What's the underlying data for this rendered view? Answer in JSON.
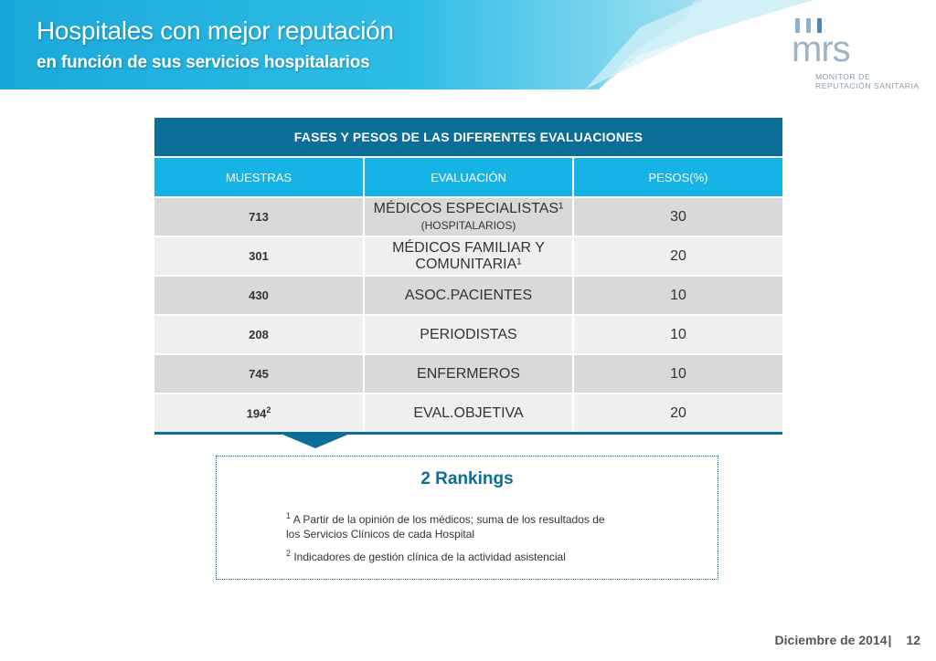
{
  "header": {
    "title": "Hospitales con mejor reputación",
    "subtitle": "en función de sus servicios hospitalarios"
  },
  "logo": {
    "word": "mrs",
    "tagline_1": "MONITOR DE",
    "tagline_2": "REPUTACIÓN SANITARIA"
  },
  "table": {
    "title": "FASES Y PESOS DE LAS DIFERENTES EVALUACIONES",
    "columns": [
      "MUESTRAS",
      "EVALUACIÓN",
      "PESOS(%)"
    ],
    "rows": [
      {
        "muestras": "713",
        "evaluacion": "MÉDICOS  ESPECIALISTAS¹",
        "evaluacion_note": "(HOSPITALARIOS)",
        "peso": "30"
      },
      {
        "muestras": "301",
        "evaluacion": "MÉDICOS FAMILIAR Y COMUNITARIA¹",
        "peso": "20"
      },
      {
        "muestras": "430",
        "evaluacion": "ASOC.PACIENTES",
        "peso": "10"
      },
      {
        "muestras": "208",
        "evaluacion": "PERIODISTAS",
        "peso": "10"
      },
      {
        "muestras": "745",
        "evaluacion": "ENFERMEROS",
        "peso": "10"
      },
      {
        "muestras": "194",
        "muestras_sup": "2",
        "evaluacion": "EVAL.OBJETIVA",
        "peso": "20"
      }
    ]
  },
  "notes": {
    "title": "2 Rankings",
    "note1_mark": "1",
    "note1_line1": " A   Partir de la opinión de los médicos; suma de los resultados de",
    "note1_line2": "los Servicios Clínicos de cada Hospital",
    "note2_mark": "2",
    "note2_text": " Indicadores de gestión clínica de la actividad asistencial"
  },
  "footer": {
    "date": "Diciembre de 2014",
    "separator": "|",
    "page": "12"
  },
  "colors": {
    "banner_light": "#7fd3ea",
    "banner_mid": "#29b6e3",
    "table_dark": "#0b6d98",
    "table_header": "#16b4e6"
  }
}
